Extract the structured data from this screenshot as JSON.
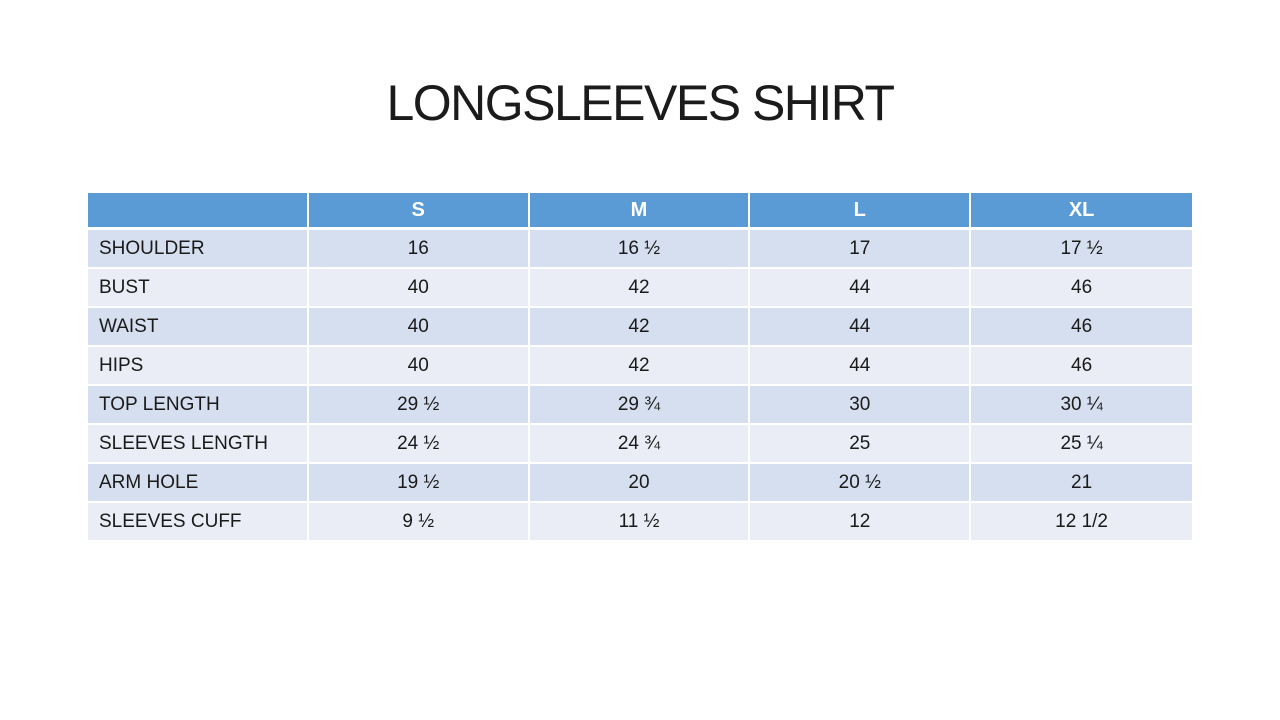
{
  "page": {
    "title": "LONGSLEEVES SHIRT"
  },
  "size_chart": {
    "columns": [
      "",
      "S",
      "M",
      "L",
      "XL"
    ],
    "rows": [
      {
        "label": "SHOULDER",
        "values": [
          "16",
          "16 ½",
          "17",
          "17 ½"
        ]
      },
      {
        "label": "BUST",
        "values": [
          "40",
          "42",
          "44",
          "46"
        ]
      },
      {
        "label": "WAIST",
        "values": [
          "40",
          "42",
          "44",
          "46"
        ]
      },
      {
        "label": "HIPS",
        "values": [
          "40",
          "42",
          "44",
          "46"
        ]
      },
      {
        "label": "TOP LENGTH",
        "values": [
          "29 ½",
          "29 ¾",
          "30",
          "30 ¼"
        ]
      },
      {
        "label": "SLEEVES LENGTH",
        "values": [
          "24 ½",
          "24 ¾",
          "25",
          "25 ¼"
        ]
      },
      {
        "label": "ARM HOLE",
        "values": [
          "19 ½",
          "20",
          "20 ½",
          "21"
        ]
      },
      {
        "label": "SLEEVES CUFF",
        "values": [
          "9 ½",
          "11 ½",
          "12",
          "12 1/2"
        ]
      }
    ]
  },
  "colors": {
    "header_bg": "#5B9BD5",
    "header_text": "#FFFFFF",
    "band_dark": "#D6DFEF",
    "band_light": "#EAEDF6",
    "body_text": "#1A1A1A",
    "background": "#FFFFFF"
  }
}
